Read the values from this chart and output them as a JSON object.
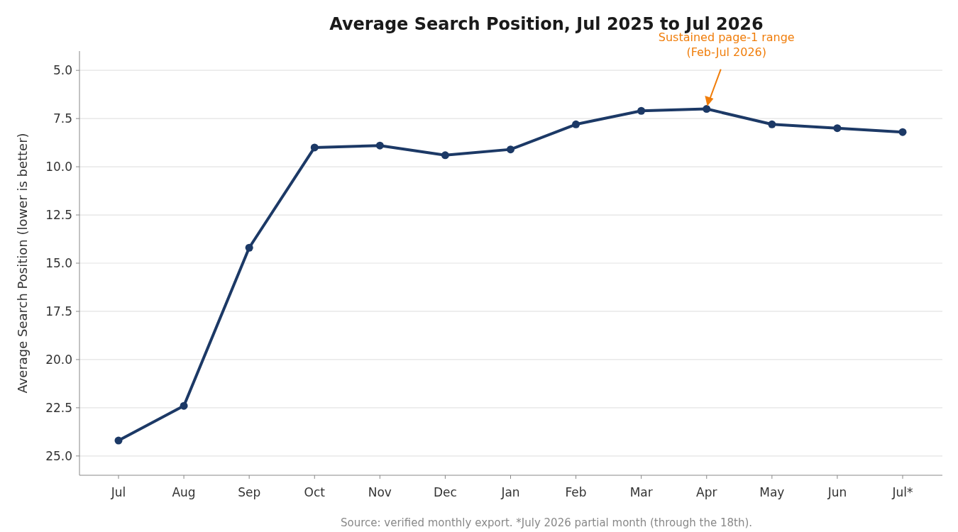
{
  "chart_data": {
    "type": "line",
    "title": "Average Search Position, Jul 2025 to Jul 2026",
    "ylabel": "Average Search Position (lower is better)",
    "categories": [
      "Jul",
      "Aug",
      "Sep",
      "Oct",
      "Nov",
      "Dec",
      "Jan",
      "Feb",
      "Mar",
      "Apr",
      "May",
      "Jun",
      "Jul*"
    ],
    "series": [
      {
        "color": "#1c3966",
        "values": [
          24.2,
          22.4,
          14.2,
          9.0,
          8.9,
          9.4,
          9.1,
          7.8,
          7.1,
          7.0,
          7.8,
          8.0,
          8.2
        ]
      }
    ],
    "ylim": [
      26,
      4
    ],
    "yticks": [
      {
        "value": 5,
        "label": "5.0"
      },
      {
        "value": 7.5,
        "label": "7.5"
      },
      {
        "value": 10,
        "label": "10.0"
      },
      {
        "value": 12.5,
        "label": "12.5"
      },
      {
        "value": 15,
        "label": "15.0"
      },
      {
        "value": 17.5,
        "label": "17.5"
      },
      {
        "value": 20,
        "label": "20.0"
      },
      {
        "value": 22.5,
        "label": "22.5"
      },
      {
        "value": 25,
        "label": "25.0"
      }
    ],
    "grid": "y",
    "marker": "circle",
    "line_style": "solid",
    "annotations": [
      "Sustained page-1 range\n(Feb-Jul 2026)",
      "Source: verified monthly export. *July 2026 partial month (through the 18th)."
    ]
  }
}
